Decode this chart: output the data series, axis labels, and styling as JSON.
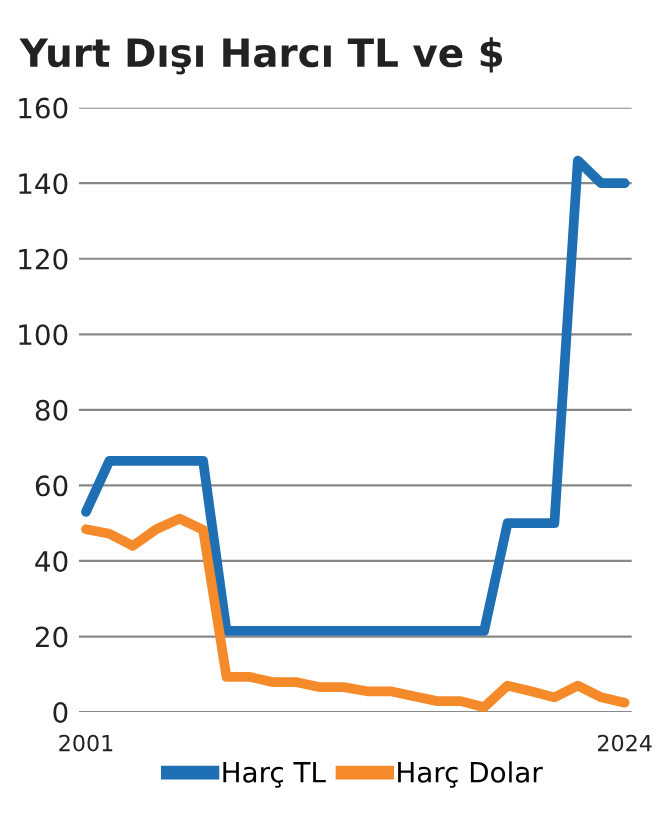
{
  "chart_data": {
    "type": "line",
    "title": "Yurt Dışı Harcı TL ve $",
    "categories": [
      "2001",
      null,
      null,
      null,
      null,
      null,
      null,
      null,
      null,
      null,
      null,
      null,
      null,
      null,
      null,
      null,
      null,
      null,
      null,
      null,
      null,
      null,
      null,
      "2024"
    ],
    "series": [
      {
        "name": "Harç TL",
        "color": "#1f6fb5",
        "values": [
          53,
          66.5,
          66.5,
          66.5,
          66.5,
          66.5,
          21.5,
          21.5,
          21.5,
          21.5,
          21.5,
          21.5,
          21.5,
          21.5,
          21.5,
          21.5,
          21.5,
          21.5,
          50,
          50,
          50,
          146,
          140,
          140
        ]
      },
      {
        "name": "Harç Dolar",
        "color": "#f58a2a",
        "values": [
          48.4,
          47.2,
          44,
          48.4,
          51.2,
          48.2,
          9.3,
          9.3,
          7.9,
          7.9,
          6.6,
          6.6,
          5.5,
          5.5,
          4.2,
          2.9,
          2.9,
          1.3,
          7,
          5.5,
          3.9,
          7,
          3.9,
          2.5
        ]
      }
    ],
    "ylim": [
      0,
      160
    ],
    "yticks": [
      0,
      20,
      40,
      60,
      80,
      100,
      120,
      140,
      160
    ],
    "grid": "y",
    "legend": "bottom",
    "marker": "none",
    "line_style": "solid"
  }
}
